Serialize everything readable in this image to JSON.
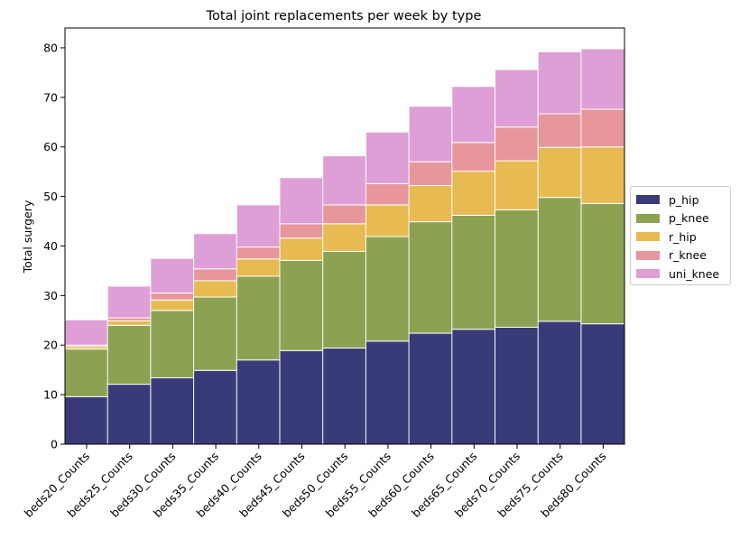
{
  "chart_data": {
    "type": "bar",
    "stacked": true,
    "title": "Total joint replacements per week by type",
    "xlabel": "",
    "ylabel": "Total surgery",
    "ylim": [
      0,
      84
    ],
    "yticks": [
      0,
      10,
      20,
      30,
      40,
      50,
      60,
      70,
      80
    ],
    "grid": false,
    "legend_position": "center-right, outside plot",
    "categories": [
      "beds20_Counts",
      "beds25_Counts",
      "beds30_Counts",
      "beds35_Counts",
      "beds40_Counts",
      "beds45_Counts",
      "beds50_Counts",
      "beds55_Counts",
      "beds60_Counts",
      "beds65_Counts",
      "beds70_Counts",
      "beds75_Counts",
      "beds80_Counts"
    ],
    "series": [
      {
        "name": "p_hip",
        "color": "#393b79",
        "values": [
          9.6,
          12.1,
          13.4,
          14.9,
          17.0,
          18.9,
          19.4,
          20.8,
          22.4,
          23.2,
          23.6,
          24.8,
          24.3
        ]
      },
      {
        "name": "p_knee",
        "color": "#8ca252",
        "values": [
          9.6,
          11.9,
          13.6,
          14.8,
          16.9,
          18.2,
          19.5,
          21.1,
          22.5,
          23.0,
          23.7,
          25.0,
          24.3
        ]
      },
      {
        "name": "r_hip",
        "color": "#e7ba52",
        "values": [
          0.5,
          0.9,
          2.1,
          3.3,
          3.5,
          4.5,
          5.6,
          6.4,
          7.3,
          8.9,
          9.9,
          10.1,
          11.4
        ]
      },
      {
        "name": "r_knee",
        "color": "#e7969c",
        "values": [
          0.3,
          0.6,
          1.4,
          2.4,
          2.4,
          2.9,
          3.8,
          4.3,
          4.8,
          5.8,
          6.8,
          6.8,
          7.6
        ]
      },
      {
        "name": "uni_knee",
        "color": "#de9ed6",
        "values": [
          5.1,
          6.4,
          7.0,
          7.1,
          8.5,
          9.3,
          9.9,
          10.4,
          11.2,
          11.3,
          11.6,
          12.5,
          12.2
        ]
      }
    ]
  }
}
